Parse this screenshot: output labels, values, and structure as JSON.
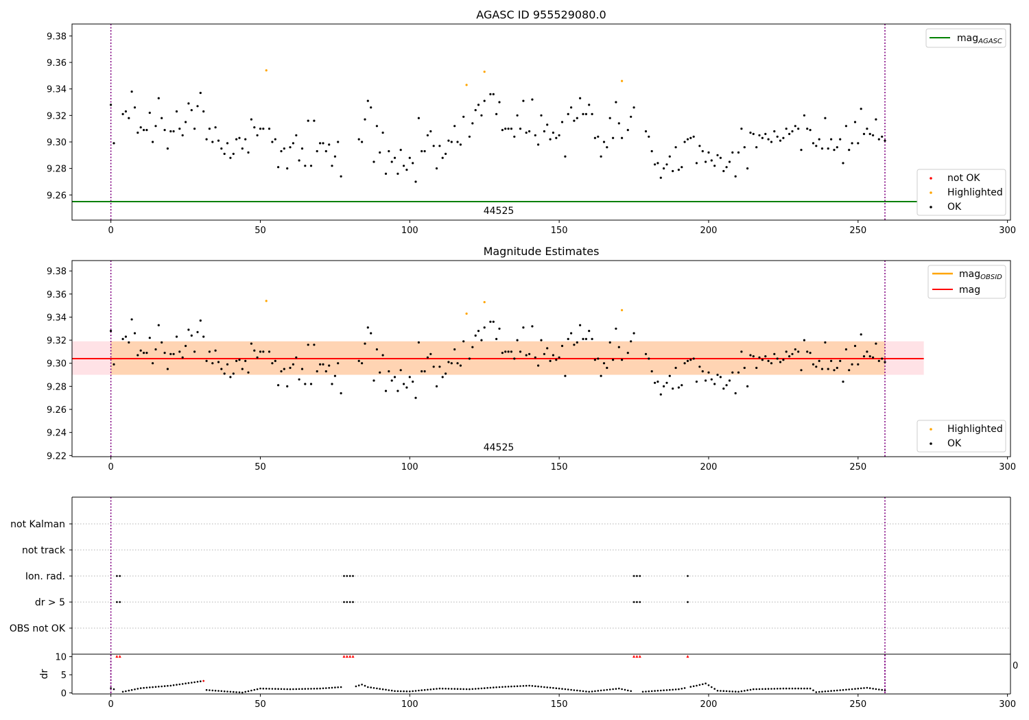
{
  "chart_data": [
    {
      "type": "scatter",
      "title": "AGASC ID 955529080.0",
      "xlim": [
        -13,
        301
      ],
      "ylim": [
        9.241,
        9.389
      ],
      "x_ticks": [
        "0",
        "50",
        "100",
        "150",
        "200",
        "250",
        "300"
      ],
      "y_ticks": [
        "9.26",
        "9.28",
        "9.30",
        "9.32",
        "9.34",
        "9.36",
        "9.38"
      ],
      "annotation": "44525",
      "obs_boundaries": [
        0,
        259
      ],
      "hlines": [
        {
          "name": "mag_AGASC",
          "y": 9.255,
          "color": "#008000"
        }
      ],
      "series": [
        {
          "name": "not OK",
          "color": "#ff0000",
          "points": []
        },
        {
          "name": "Highlighted",
          "color": "#ffa500",
          "points": [
            [
              52,
              9.354
            ],
            [
              119,
              9.343
            ],
            [
              125,
              9.353
            ],
            [
              171,
              9.346
            ]
          ]
        },
        {
          "name": "OK",
          "color": "#000000",
          "points": "ok_points"
        }
      ],
      "legend_lines": [
        {
          "label": "mag",
          "sub": "AGASC",
          "color": "#008000"
        }
      ],
      "legend_markers": [
        "not OK",
        "Highlighted",
        "OK"
      ]
    },
    {
      "type": "scatter",
      "title": "Magnitude Estimates",
      "xlim": [
        -13,
        301
      ],
      "ylim": [
        9.219,
        9.389
      ],
      "x_ticks": [
        "0",
        "50",
        "100",
        "150",
        "200",
        "250",
        "300"
      ],
      "y_ticks": [
        "9.22",
        "9.24",
        "9.26",
        "9.28",
        "9.30",
        "9.32",
        "9.34",
        "9.36",
        "9.38"
      ],
      "annotation": "44525",
      "obs_boundaries": [
        0,
        259
      ],
      "bands": [
        {
          "name": "mag range",
          "y0": 9.29,
          "y1": 9.319,
          "x0": -13,
          "x1": 272,
          "color": "#ffb6c1",
          "opacity": 0.4
        },
        {
          "name": "mag_OBSID range",
          "y0": 9.29,
          "y1": 9.319,
          "x0": 0,
          "x1": 259,
          "color": "#ffa500",
          "opacity": 0.22
        }
      ],
      "hlines": [
        {
          "name": "mag_OBSID",
          "y": 9.304,
          "x0": 0,
          "x1": 259,
          "color": "#ffa500"
        },
        {
          "name": "mag",
          "y": 9.304,
          "x0": -13,
          "x1": 272,
          "color": "#ff0000"
        }
      ],
      "series": [
        {
          "name": "Highlighted",
          "color": "#ffa500",
          "points": [
            [
              52,
              9.354
            ],
            [
              119,
              9.343
            ],
            [
              125,
              9.353
            ],
            [
              171,
              9.346
            ]
          ]
        },
        {
          "name": "OK",
          "color": "#000000",
          "points": "ok_points"
        }
      ],
      "legend_lines": [
        {
          "label": "mag",
          "sub": "OBSID",
          "color": "#ffa500"
        },
        {
          "label": "mag",
          "sub": "",
          "color": "#ff0000"
        }
      ],
      "legend_markers": [
        "Highlighted",
        "OK"
      ]
    },
    {
      "type": "scatter",
      "title": "",
      "categories": [
        "not Kalman",
        "not track",
        "Ion. rad.",
        "dr > 5",
        "OBS not OK"
      ],
      "flags": {
        "Ion. rad.": [
          2,
          3,
          78,
          79,
          80,
          81,
          175,
          176,
          177,
          193
        ],
        "dr > 5": [
          2,
          3,
          78,
          79,
          80,
          81,
          175,
          176,
          177,
          193
        ]
      },
      "obs_boundaries": [
        0,
        259
      ]
    },
    {
      "type": "scatter",
      "title": "",
      "ylabel": "dr",
      "xlim": [
        -13,
        301
      ],
      "ylim": [
        -0.3,
        10.5
      ],
      "x_ticks": [
        "0",
        "50",
        "100",
        "150",
        "200",
        "250",
        "300"
      ],
      "y_ticks": [
        "0",
        "5",
        "10"
      ],
      "clip_value": 10,
      "obs_boundaries": [
        0,
        259
      ],
      "high_points": [
        [
          2,
          10
        ],
        [
          3,
          10
        ],
        [
          78,
          10
        ],
        [
          79,
          10
        ],
        [
          80,
          10
        ],
        [
          81,
          10
        ],
        [
          175,
          10
        ],
        [
          176,
          10
        ],
        [
          177,
          10
        ],
        [
          193,
          10
        ]
      ],
      "dr_profile": [
        [
          0,
          1.3
        ],
        [
          1,
          1.0
        ],
        [
          2,
          10
        ],
        [
          3,
          10
        ],
        [
          4,
          0.3
        ],
        [
          10,
          1.3
        ],
        [
          20,
          2.0
        ],
        [
          31,
          3.3
        ],
        [
          32,
          0.8
        ],
        [
          40,
          0.3
        ],
        [
          44,
          0.1
        ],
        [
          50,
          1.2
        ],
        [
          60,
          1.0
        ],
        [
          70,
          1.2
        ],
        [
          77,
          1.6
        ],
        [
          79,
          10
        ],
        [
          82,
          1.8
        ],
        [
          84,
          2.3
        ],
        [
          86,
          1.6
        ],
        [
          95,
          0.5
        ],
        [
          100,
          0.4
        ],
        [
          110,
          1.2
        ],
        [
          120,
          1.0
        ],
        [
          130,
          1.6
        ],
        [
          140,
          2.0
        ],
        [
          150,
          1.2
        ],
        [
          160,
          0.3
        ],
        [
          170,
          1.2
        ],
        [
          174,
          0.5
        ],
        [
          176,
          10
        ],
        [
          178,
          0.3
        ],
        [
          190,
          1.0
        ],
        [
          196,
          2.0
        ],
        [
          199,
          2.6
        ],
        [
          203,
          0.6
        ],
        [
          210,
          0.3
        ],
        [
          215,
          1.0
        ],
        [
          225,
          1.2
        ],
        [
          234,
          1.2
        ],
        [
          236,
          0.2
        ],
        [
          245,
          0.8
        ],
        [
          253,
          1.4
        ],
        [
          259,
          0.7
        ]
      ]
    }
  ],
  "right_edge_label": "0"
}
